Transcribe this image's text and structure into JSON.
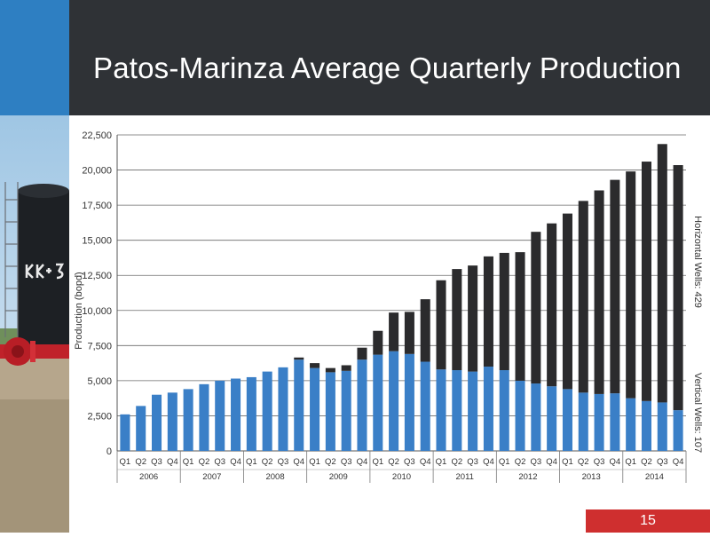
{
  "slide": {
    "title": "Patos-Marinza Average Quarterly Production",
    "page_number": "15"
  },
  "colors": {
    "header_bg": "#2f3236",
    "accent_blue": "#2e7fc2",
    "vertical_bar": "#3a7fc7",
    "horizontal_bar": "#2b2b2d",
    "page_badge": "#cf2f2f"
  },
  "chart_data": {
    "type": "bar",
    "stacked": true,
    "ylabel": "Production (bopd)",
    "ylim": [
      0,
      22500
    ],
    "yticks": [
      0,
      2500,
      5000,
      7500,
      10000,
      12500,
      15000,
      17500,
      20000,
      22500
    ],
    "ytick_labels": [
      "0",
      "2,500",
      "5,000",
      "7,500",
      "10,000",
      "12,500",
      "15,000",
      "17,500",
      "20,000",
      "22,500"
    ],
    "grid": true,
    "categories": [
      "Q1",
      "Q2",
      "Q3",
      "Q4",
      "Q1",
      "Q2",
      "Q3",
      "Q4",
      "Q1",
      "Q2",
      "Q3",
      "Q4",
      "Q1",
      "Q2",
      "Q3",
      "Q4",
      "Q1",
      "Q2",
      "Q3",
      "Q4",
      "Q1",
      "Q2",
      "Q3",
      "Q4",
      "Q1",
      "Q2",
      "Q3",
      "Q4",
      "Q1",
      "Q2",
      "Q3",
      "Q4",
      "Q1",
      "Q2",
      "Q3",
      "Q4"
    ],
    "year_groups": [
      {
        "label": "2006",
        "count": 4
      },
      {
        "label": "2007",
        "count": 4
      },
      {
        "label": "2008",
        "count": 4
      },
      {
        "label": "2009",
        "count": 4
      },
      {
        "label": "2010",
        "count": 4
      },
      {
        "label": "2011",
        "count": 4
      },
      {
        "label": "2012",
        "count": 4
      },
      {
        "label": "2013",
        "count": 4
      },
      {
        "label": "2014",
        "count": 4
      }
    ],
    "series": [
      {
        "name": "Vertical Wells: 107",
        "color": "#3a7fc7",
        "values": [
          2600,
          3200,
          4000,
          4150,
          4400,
          4750,
          5000,
          5150,
          5250,
          5650,
          5950,
          6500,
          5900,
          5600,
          5700,
          6500,
          6850,
          7100,
          6900,
          6350,
          5800,
          5750,
          5650,
          6000,
          5750,
          5000,
          4800,
          4600,
          4400,
          4150,
          4050,
          4100,
          3750,
          3550,
          3450,
          2900
        ]
      },
      {
        "name": "Horizontal Wells: 429",
        "color": "#2b2b2d",
        "values": [
          0,
          0,
          0,
          0,
          0,
          0,
          0,
          0,
          0,
          0,
          0,
          150,
          350,
          300,
          400,
          850,
          1700,
          2750,
          3000,
          4450,
          6350,
          7200,
          7550,
          7850,
          8350,
          9150,
          10800,
          11600,
          12500,
          13650,
          14500,
          15200,
          16150,
          17050,
          18400,
          17450
        ]
      }
    ]
  }
}
